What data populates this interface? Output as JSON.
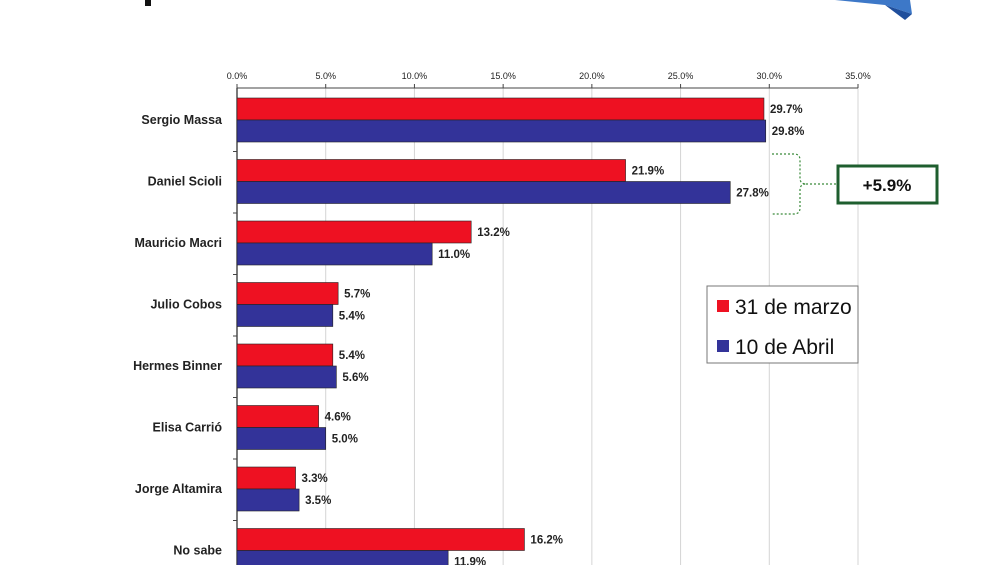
{
  "chart_data": {
    "type": "bar",
    "orientation": "horizontal",
    "categories": [
      "Sergio Massa",
      "Daniel Scioli",
      "Mauricio Macri",
      "Julio Cobos",
      "Hermes Binner",
      "Elisa Carrió",
      "Jorge Altamira",
      "No sabe"
    ],
    "series": [
      {
        "name": "31 de marzo",
        "color": "#ee1122",
        "values": [
          29.7,
          21.9,
          13.2,
          5.7,
          5.4,
          4.6,
          3.3,
          16.2
        ]
      },
      {
        "name": "10 de Abril",
        "color": "#333399",
        "values": [
          29.8,
          27.8,
          11.0,
          5.4,
          5.6,
          5.0,
          3.5,
          11.9
        ]
      }
    ],
    "xlim": [
      0,
      35
    ],
    "xticks": [
      "0.0%",
      "5.0%",
      "10.0%",
      "15.0%",
      "20.0%",
      "25.0%",
      "30.0%",
      "35.0%"
    ],
    "data_labels": [
      [
        "29.7%",
        "21.9%",
        "13.2%",
        "5.7%",
        "5.4%",
        "4.6%",
        "3.3%",
        "16.2%"
      ],
      [
        "29.8%",
        "27.8%",
        "11.0%",
        "5.4%",
        "5.6%",
        "5.0%",
        "3.5%",
        "11.9%"
      ]
    ],
    "grid": true,
    "legend_position": "right",
    "annotation": {
      "text": "+5.9%",
      "category": "Daniel Scioli",
      "border_color": "#1e5e2e"
    }
  }
}
